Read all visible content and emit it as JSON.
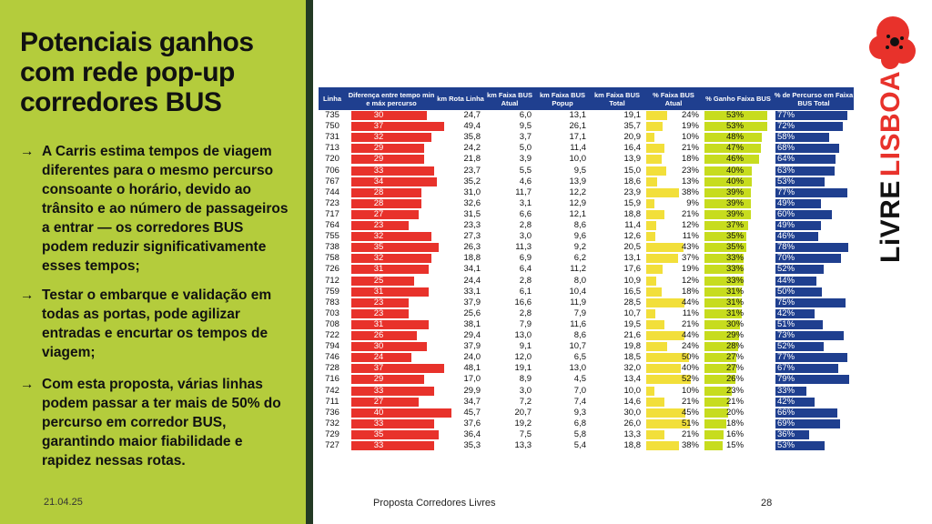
{
  "title": "Potenciais ganhos com rede pop-up corredores BUS",
  "bullets": [
    {
      "arrow": "→",
      "text": "A Carris estima tempos de viagem diferentes para o mesmo percurso consoante o horário, devido ao trânsito e ao número de passageiros a entrar — os corredores BUS podem reduzir significativamente esses tempos;"
    },
    {
      "arrow": "→",
      "text": "Testar o embarque e validação em todas as portas, pode agilizar entradas e encurtar os tempos de viagem;"
    },
    {
      "arrow": "→",
      "text": "Com esta proposta, várias linhas podem passar a ter mais de 50% do percurso em corredor BUS, garantindo maior fiabilidade e rapidez nessas rotas."
    }
  ],
  "footer": {
    "date": "21.04.25",
    "title": "Proposta Corredores Livres",
    "page": "28"
  },
  "logo": {
    "text": "LiVRE LISBOA",
    "word1": "LiVRE",
    "word2": "LISBOA"
  },
  "colors": {
    "green": "#b4cc3c",
    "red": "#e8322b",
    "yellow": "#f2df3a",
    "lime": "#c7dc1e",
    "navy": "#1f3f8f",
    "dark": "#233a24"
  },
  "chart_data": {
    "type": "table",
    "columns": [
      "Linha",
      "Diferença entre tempo min e máx percurso",
      "km Rota Linha",
      "km Faixa BUS Atual",
      "km Faixa BUS Popup",
      "km Faixa BUS Total",
      "% Faixa BUS Atual",
      "% Ganho Faixa BUS",
      "% de Percurso em Faixa BUS Total"
    ],
    "rows": [
      [
        "735",
        "30",
        "24,7",
        "6,0",
        "13,1",
        "19,1",
        "24%",
        "53%",
        "77%"
      ],
      [
        "750",
        "37",
        "49,4",
        "9,5",
        "26,1",
        "35,7",
        "19%",
        "53%",
        "72%"
      ],
      [
        "731",
        "32",
        "35,8",
        "3,7",
        "17,1",
        "20,9",
        "10%",
        "48%",
        "58%"
      ],
      [
        "713",
        "29",
        "24,2",
        "5,0",
        "11,4",
        "16,4",
        "21%",
        "47%",
        "68%"
      ],
      [
        "720",
        "29",
        "21,8",
        "3,9",
        "10,0",
        "13,9",
        "18%",
        "46%",
        "64%"
      ],
      [
        "706",
        "33",
        "23,7",
        "5,5",
        "9,5",
        "15,0",
        "23%",
        "40%",
        "63%"
      ],
      [
        "767",
        "34",
        "35,2",
        "4,6",
        "13,9",
        "18,6",
        "13%",
        "40%",
        "53%"
      ],
      [
        "744",
        "28",
        "31,0",
        "11,7",
        "12,2",
        "23,9",
        "38%",
        "39%",
        "77%"
      ],
      [
        "723",
        "28",
        "32,6",
        "3,1",
        "12,9",
        "15,9",
        "9%",
        "39%",
        "49%"
      ],
      [
        "717",
        "27",
        "31,5",
        "6,6",
        "12,1",
        "18,8",
        "21%",
        "39%",
        "60%"
      ],
      [
        "764",
        "23",
        "23,3",
        "2,8",
        "8,6",
        "11,4",
        "12%",
        "37%",
        "49%"
      ],
      [
        "755",
        "32",
        "27,3",
        "3,0",
        "9,6",
        "12,6",
        "11%",
        "35%",
        "46%"
      ],
      [
        "738",
        "35",
        "26,3",
        "11,3",
        "9,2",
        "20,5",
        "43%",
        "35%",
        "78%"
      ],
      [
        "758",
        "32",
        "18,8",
        "6,9",
        "6,2",
        "13,1",
        "37%",
        "33%",
        "70%"
      ],
      [
        "726",
        "31",
        "34,1",
        "6,4",
        "11,2",
        "17,6",
        "19%",
        "33%",
        "52%"
      ],
      [
        "712",
        "25",
        "24,4",
        "2,8",
        "8,0",
        "10,9",
        "12%",
        "33%",
        "44%"
      ],
      [
        "759",
        "31",
        "33,1",
        "6,1",
        "10,4",
        "16,5",
        "18%",
        "31%",
        "50%"
      ],
      [
        "783",
        "23",
        "37,9",
        "16,6",
        "11,9",
        "28,5",
        "44%",
        "31%",
        "75%"
      ],
      [
        "703",
        "23",
        "25,6",
        "2,8",
        "7,9",
        "10,7",
        "11%",
        "31%",
        "42%"
      ],
      [
        "708",
        "31",
        "38,1",
        "7,9",
        "11,6",
        "19,5",
        "21%",
        "30%",
        "51%"
      ],
      [
        "722",
        "26",
        "29,4",
        "13,0",
        "8,6",
        "21,6",
        "44%",
        "29%",
        "73%"
      ],
      [
        "794",
        "30",
        "37,9",
        "9,1",
        "10,7",
        "19,8",
        "24%",
        "28%",
        "52%"
      ],
      [
        "746",
        "24",
        "24,0",
        "12,0",
        "6,5",
        "18,5",
        "50%",
        "27%",
        "77%"
      ],
      [
        "728",
        "37",
        "48,1",
        "19,1",
        "13,0",
        "32,0",
        "40%",
        "27%",
        "67%"
      ],
      [
        "716",
        "29",
        "17,0",
        "8,9",
        "4,5",
        "13,4",
        "52%",
        "26%",
        "79%"
      ],
      [
        "742",
        "33",
        "29,9",
        "3,0",
        "7,0",
        "10,0",
        "10%",
        "23%",
        "33%"
      ],
      [
        "711",
        "27",
        "34,7",
        "7,2",
        "7,4",
        "14,6",
        "21%",
        "21%",
        "42%"
      ],
      [
        "736",
        "40",
        "45,7",
        "20,7",
        "9,3",
        "30,0",
        "45%",
        "20%",
        "66%"
      ],
      [
        "732",
        "33",
        "37,6",
        "19,2",
        "6,8",
        "26,0",
        "51%",
        "18%",
        "69%"
      ],
      [
        "729",
        "35",
        "36,4",
        "7,5",
        "5,8",
        "13,3",
        "21%",
        "16%",
        "36%"
      ],
      [
        "727",
        "33",
        "35,3",
        "13,3",
        "5,4",
        "18,8",
        "38%",
        "15%",
        "53%"
      ]
    ]
  }
}
